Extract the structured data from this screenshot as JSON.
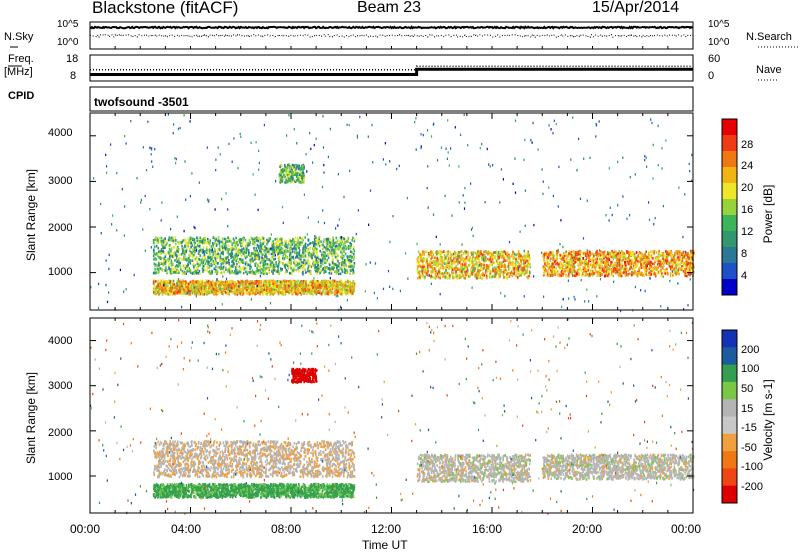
{
  "header": {
    "radar": "Blackstone (fitACF)",
    "beam": "Beam 23",
    "date": "15/Apr/2014"
  },
  "left_labels": {
    "nsky": "N.Sky",
    "freq_a": "Freq.",
    "freq_b": "[MHz]",
    "cpid": "CPID"
  },
  "right_labels": {
    "nsearch": "N.Search",
    "nave": "Nave"
  },
  "cpid_text": "twofsound -3501",
  "colors": {
    "power": [
      "#0000c8",
      "#1e50c8",
      "#287896",
      "#32966e",
      "#3cb45a",
      "#96d23c",
      "#f0e628",
      "#f0b414",
      "#f07814",
      "#f03c14",
      "#e60000"
    ],
    "velocity": [
      "#1432b4",
      "#1e5aa0",
      "#32a050",
      "#78c846",
      "#b4b4b4",
      "#c8c8c8",
      "#f0a03c",
      "#f07814",
      "#f04614",
      "#dc0000"
    ]
  },
  "chart_data": [
    {
      "type": "line",
      "title": "N.Sky / N.Search",
      "yticks": [
        "10^5",
        "10^0"
      ],
      "yticks_right": [
        "10^5",
        "10^0"
      ],
      "x": [
        "00:00",
        "04:00",
        "08:00",
        "12:00",
        "16:00",
        "20:00",
        "00:00"
      ],
      "series": [
        {
          "name": "N.Sky",
          "values": [
            10000,
            10000,
            10000,
            10000,
            10000,
            10000,
            10000
          ]
        },
        {
          "name": "N.Search",
          "values": [
            300,
            250,
            300,
            200,
            250,
            300,
            300
          ]
        }
      ]
    },
    {
      "type": "line",
      "title": "Freq. [MHz] / Nave",
      "yticks": [
        "18",
        "8"
      ],
      "yticks_right": [
        "60",
        "0"
      ],
      "x": [
        "00:00",
        "13:00",
        "13:00",
        "24:00"
      ],
      "series": [
        {
          "name": "Freq.",
          "values": [
            10.5,
            10.5,
            12.5,
            12.5
          ]
        },
        {
          "name": "Nave",
          "values": [
            26,
            26,
            34,
            34
          ]
        }
      ]
    },
    {
      "type": "heatmap",
      "xlabel": "",
      "ylabel": "Slant Range [km]",
      "yticks": [
        "4000",
        "3000",
        "2000",
        "1000"
      ],
      "ylim": [
        180,
        4500
      ],
      "colorbar": {
        "label": "Power [dB]",
        "ticks": [
          "28",
          "24",
          "20",
          "16",
          "12",
          "8",
          "4"
        ]
      },
      "bands": [
        {
          "t": [
            2.5,
            10.5
          ],
          "range": [
            1000,
            1800
          ],
          "value": 12
        },
        {
          "t": [
            2.5,
            10.5
          ],
          "range": [
            550,
            850
          ],
          "value": 20
        },
        {
          "t": [
            13,
            17.5
          ],
          "range": [
            900,
            1500
          ],
          "value": 20
        },
        {
          "t": [
            18,
            24
          ],
          "range": [
            950,
            1500
          ],
          "value": 22
        },
        {
          "t": [
            7.5,
            8.5
          ],
          "range": [
            3000,
            3400
          ],
          "value": 12
        }
      ]
    },
    {
      "type": "heatmap",
      "xlabel": "Time UT",
      "ylabel": "Slant Range [km]",
      "xticks": [
        "00:00",
        "04:00",
        "08:00",
        "12:00",
        "16:00",
        "20:00",
        "00:00"
      ],
      "yticks": [
        "4000",
        "3000",
        "2000",
        "1000"
      ],
      "ylim": [
        180,
        4500
      ],
      "colorbar": {
        "label": "Velocity [m s-1]",
        "ticks": [
          "200",
          "100",
          "50",
          "15",
          "-15",
          "-50",
          "-100",
          "-200"
        ]
      },
      "bands": [
        {
          "t": [
            2.5,
            10.5
          ],
          "range": [
            1000,
            1800
          ],
          "value": -10
        },
        {
          "t": [
            2.5,
            10.5
          ],
          "range": [
            550,
            850
          ],
          "value": 40
        },
        {
          "t": [
            13,
            17.5
          ],
          "range": [
            900,
            1500
          ],
          "value": 0
        },
        {
          "t": [
            18,
            24
          ],
          "range": [
            950,
            1500
          ],
          "value": 0
        },
        {
          "t": [
            8,
            9
          ],
          "range": [
            3100,
            3400
          ],
          "value": -200
        }
      ]
    }
  ]
}
